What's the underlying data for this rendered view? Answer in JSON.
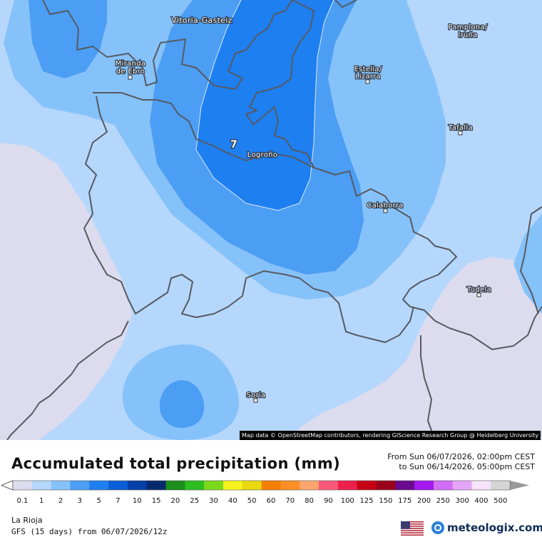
{
  "map": {
    "attribution": "Map data © OpenStreetMap contributors, rendering GIScience Research Group @ Heidelberg University",
    "cities": [
      {
        "name": "Vitoria-Gasteiz"
      },
      {
        "name": "Miranda de Ebro",
        "line1": "Miranda",
        "line2": "de Ebro"
      },
      {
        "name": "Estella/ Lizarra",
        "line1": "Estella/",
        "line2": "Lizarra"
      },
      {
        "name": "Pamplona/ Iruña",
        "line1": "Pamplona/",
        "line2": "Iruña"
      },
      {
        "name": "Tafalla"
      },
      {
        "name": "Logroño"
      },
      {
        "name": "Calahorra"
      },
      {
        "name": "Tudela"
      },
      {
        "name": "Soria"
      }
    ],
    "max_value_label": "7",
    "colors": {
      "band_0_1": "#dcdcee",
      "band_1": "#b5d7fc",
      "band_2": "#86c2fa",
      "band_3": "#4c9ef4",
      "band_5": "#1e7ff0",
      "border": "#565a62"
    }
  },
  "legend": {
    "title": "Accumulated total precipitation (mm)",
    "period_from": "From Sun 06/07/2026, 02:00pm CEST",
    "period_to": "to Sun 06/14/2026, 05:00pm CEST",
    "scale_labels": [
      "0.1",
      "1",
      "2",
      "3",
      "5",
      "7",
      "10",
      "15",
      "20",
      "25",
      "30",
      "40",
      "50",
      "60",
      "70",
      "80",
      "90",
      "100",
      "125",
      "150",
      "175",
      "200",
      "250",
      "300",
      "400",
      "500"
    ],
    "scale_colors": [
      "#dcdcee",
      "#b5d7fc",
      "#86c2fa",
      "#4c9ef4",
      "#1e7ff0",
      "#0a5fd8",
      "#063fa7",
      "#052a6e",
      "#1a8f1a",
      "#2cbf1f",
      "#7ada1a",
      "#f7f21d",
      "#e8d80f",
      "#f57f00",
      "#fb8f25",
      "#fca56d",
      "#fa5a79",
      "#ec1f4d",
      "#c60014",
      "#99001a",
      "#6a0a8e",
      "#a518f0",
      "#d26df6",
      "#e5a6f9",
      "#f7e3fc",
      "#d5d5d5",
      "#9a9a9a"
    ],
    "region": "La Rioja",
    "model": "GFS (15 days) from 06/07/2026/12z",
    "brand": "meteologix.com",
    "flag_icon": "us-flag-icon",
    "logo_icon": "meteologix-logo-icon"
  }
}
